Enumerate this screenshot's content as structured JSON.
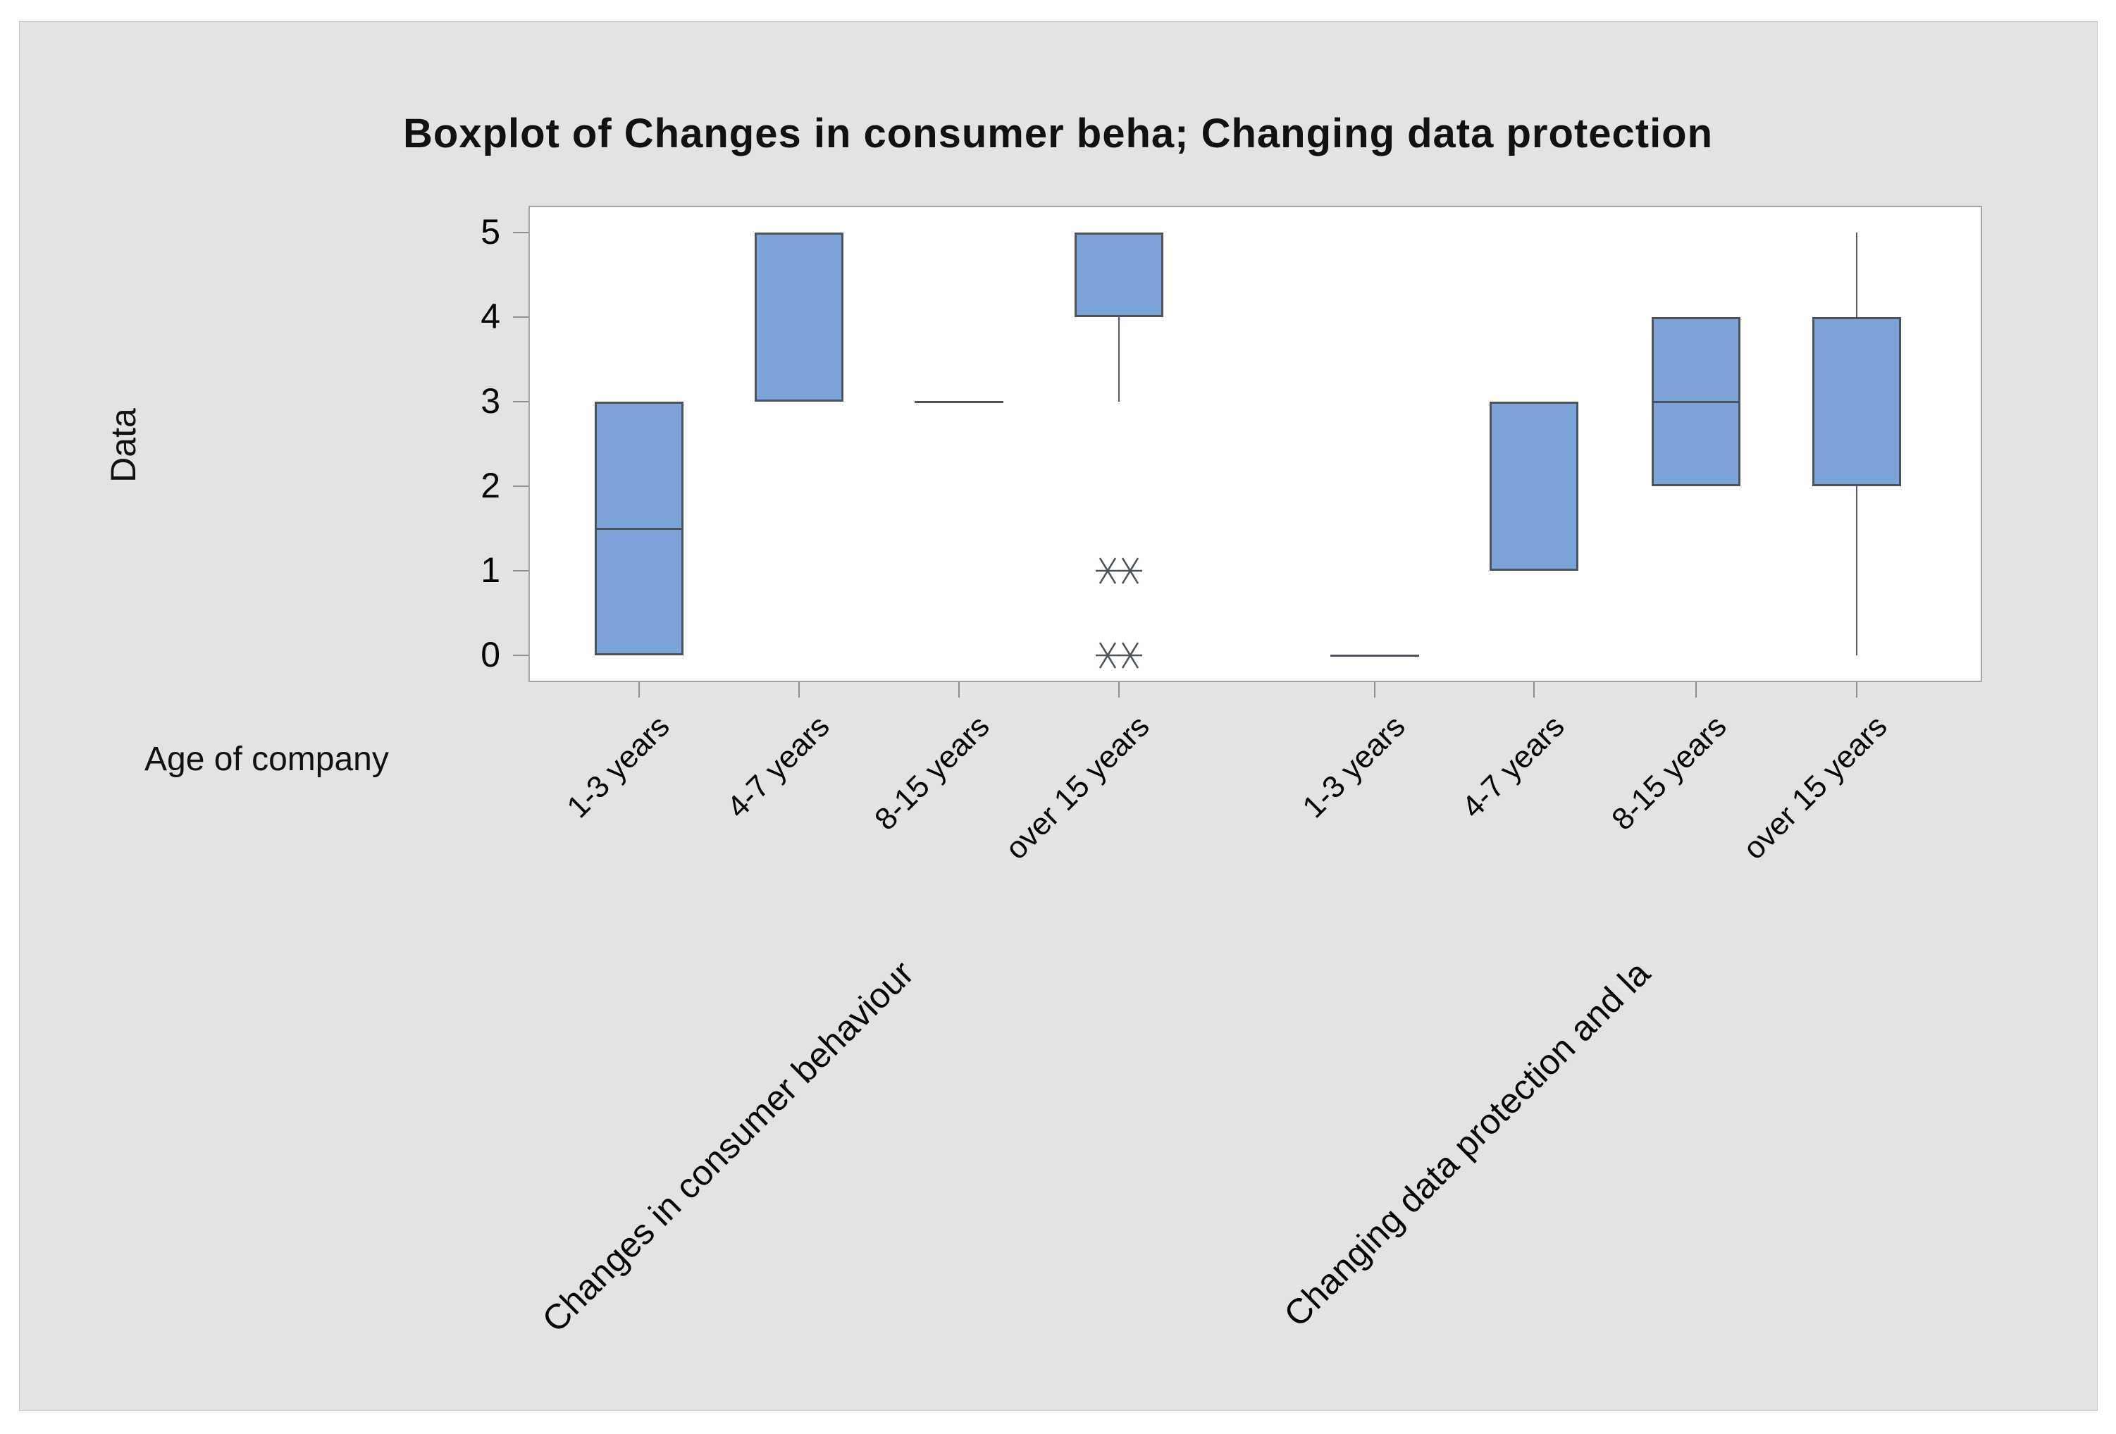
{
  "window": {
    "background": "#ffffff",
    "panel_background": "#e3e3e3"
  },
  "chart_data": {
    "type": "boxplot",
    "title": "Boxplot of Changes in consumer beha; Changing data protection",
    "ylabel": "Data",
    "xlabel": "Age of company",
    "ylim": [
      0,
      5
    ],
    "yticks": [
      0,
      1,
      2,
      3,
      4,
      5
    ],
    "grid": false,
    "legend_position": "none",
    "outlier_symbol": "asterisk",
    "colors": {
      "box_fill": "#7da4d8",
      "box_border": "#4d545c",
      "whisker": "#565c63",
      "plot_border": "#a5a5a5",
      "tick": "#8f8f8f",
      "text": "#000000"
    },
    "groups": [
      {
        "label": "Changes in consumer behaviour",
        "categories": [
          {
            "label": "1-3 years",
            "whisker_low": 0,
            "q1": 0,
            "median": 1.5,
            "q3": 3,
            "whisker_high": 3,
            "outliers": []
          },
          {
            "label": "4-7 years",
            "whisker_low": 3,
            "q1": 3,
            "median": 3,
            "q3": 5,
            "whisker_high": 5,
            "outliers": []
          },
          {
            "label": "8-15 years",
            "whisker_low": 3,
            "q1": 3,
            "median": 3,
            "q3": 3,
            "whisker_high": 3,
            "outliers": []
          },
          {
            "label": "over 15 years",
            "whisker_low": 3,
            "q1": 4,
            "median": 5,
            "q3": 5,
            "whisker_high": 5,
            "outliers": [
              1,
              1,
              0,
              0
            ]
          }
        ]
      },
      {
        "label": "Changing data protection and la",
        "categories": [
          {
            "label": "1-3 years",
            "whisker_low": 0,
            "q1": 0,
            "median": 0,
            "q3": 0,
            "whisker_high": 0,
            "outliers": []
          },
          {
            "label": "4-7 years",
            "whisker_low": 1,
            "q1": 1,
            "median": 3,
            "q3": 3,
            "whisker_high": 3,
            "outliers": []
          },
          {
            "label": "8-15 years",
            "whisker_low": 2,
            "q1": 2,
            "median": 3,
            "q3": 4,
            "whisker_high": 4,
            "outliers": []
          },
          {
            "label": "over 15 years",
            "whisker_low": 0,
            "q1": 2,
            "median": 2,
            "q3": 4,
            "whisker_high": 5,
            "outliers": []
          }
        ]
      }
    ]
  }
}
